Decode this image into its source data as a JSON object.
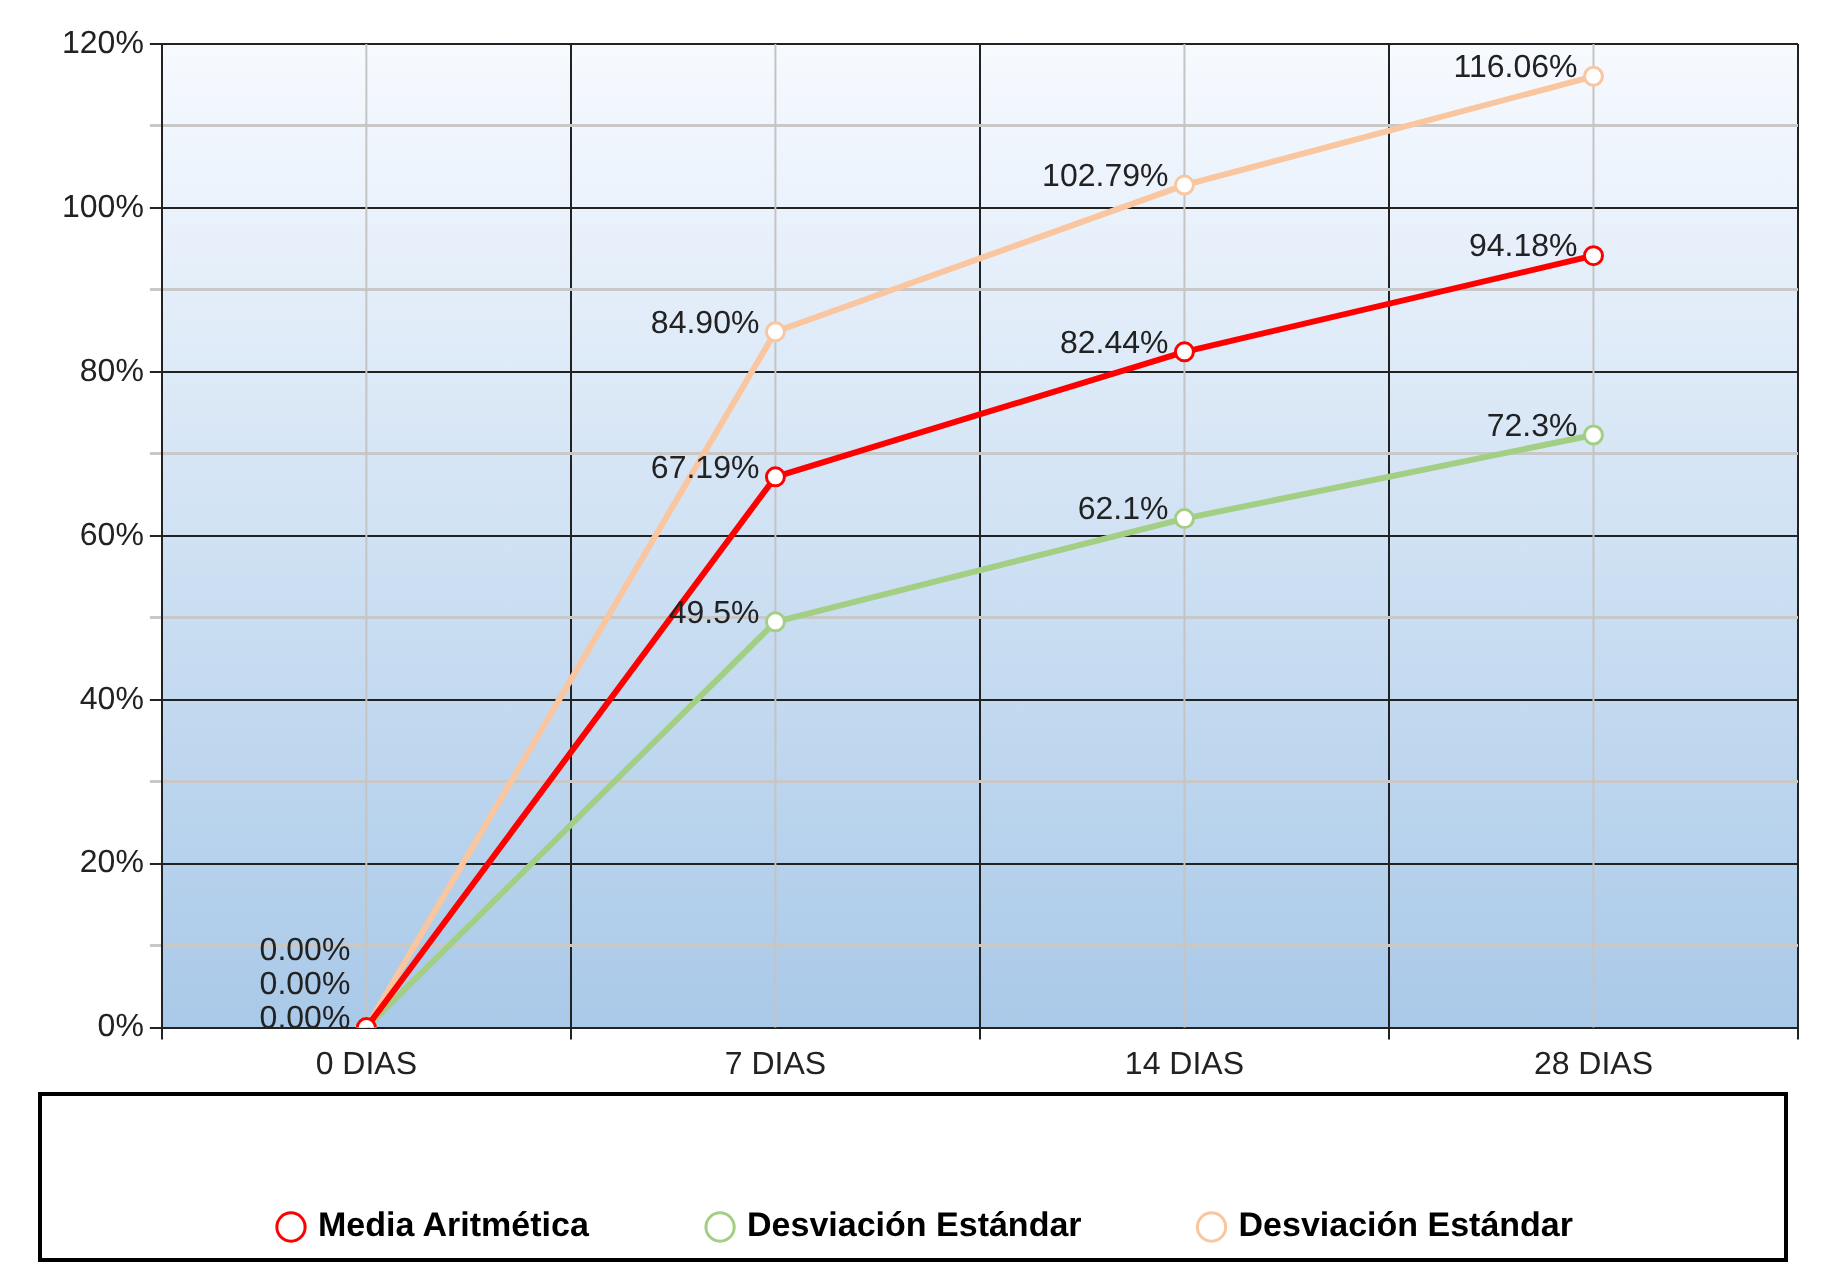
{
  "chart_data": {
    "type": "line",
    "categories": [
      "0 DIAS",
      "7 DIAS",
      "14 DIAS",
      "28 DIAS"
    ],
    "series": [
      {
        "name": "Media Aritmética",
        "color": "#ff0000",
        "values": [
          0,
          67.19,
          82.44,
          94.18
        ],
        "value_labels": [
          "0.00%",
          "67.19%",
          "82.44%",
          "94.18%"
        ]
      },
      {
        "name": "Desviación Estándar",
        "color": "#a3cf84",
        "values": [
          0,
          49.5,
          62.1,
          72.3
        ],
        "value_labels": [
          "0.00%",
          "49.5%",
          "62.1%",
          "72.3%"
        ]
      },
      {
        "name": "Desviación Estándar",
        "color": "#f9c6a0",
        "values": [
          0,
          84.9,
          102.79,
          116.06
        ],
        "value_labels": [
          "0.00%",
          "84.90%",
          "102.79%",
          "116.06%"
        ]
      }
    ],
    "ylim": [
      0,
      120
    ],
    "yticks": [
      {
        "value": 0,
        "label": "0%"
      },
      {
        "value": 10,
        "label": null
      },
      {
        "value": 20,
        "label": "20%"
      },
      {
        "value": 30,
        "label": null
      },
      {
        "value": 40,
        "label": "40%"
      },
      {
        "value": 50,
        "label": null
      },
      {
        "value": 60,
        "label": "60%"
      },
      {
        "value": 70,
        "label": null
      },
      {
        "value": 80,
        "label": "80%"
      },
      {
        "value": 90,
        "label": null
      },
      {
        "value": 100,
        "label": "100%"
      },
      {
        "value": 110,
        "label": null
      },
      {
        "value": 120,
        "label": "120%"
      }
    ],
    "grid": true,
    "legend": "bottom",
    "marker": "circle",
    "line_style": "solid"
  }
}
